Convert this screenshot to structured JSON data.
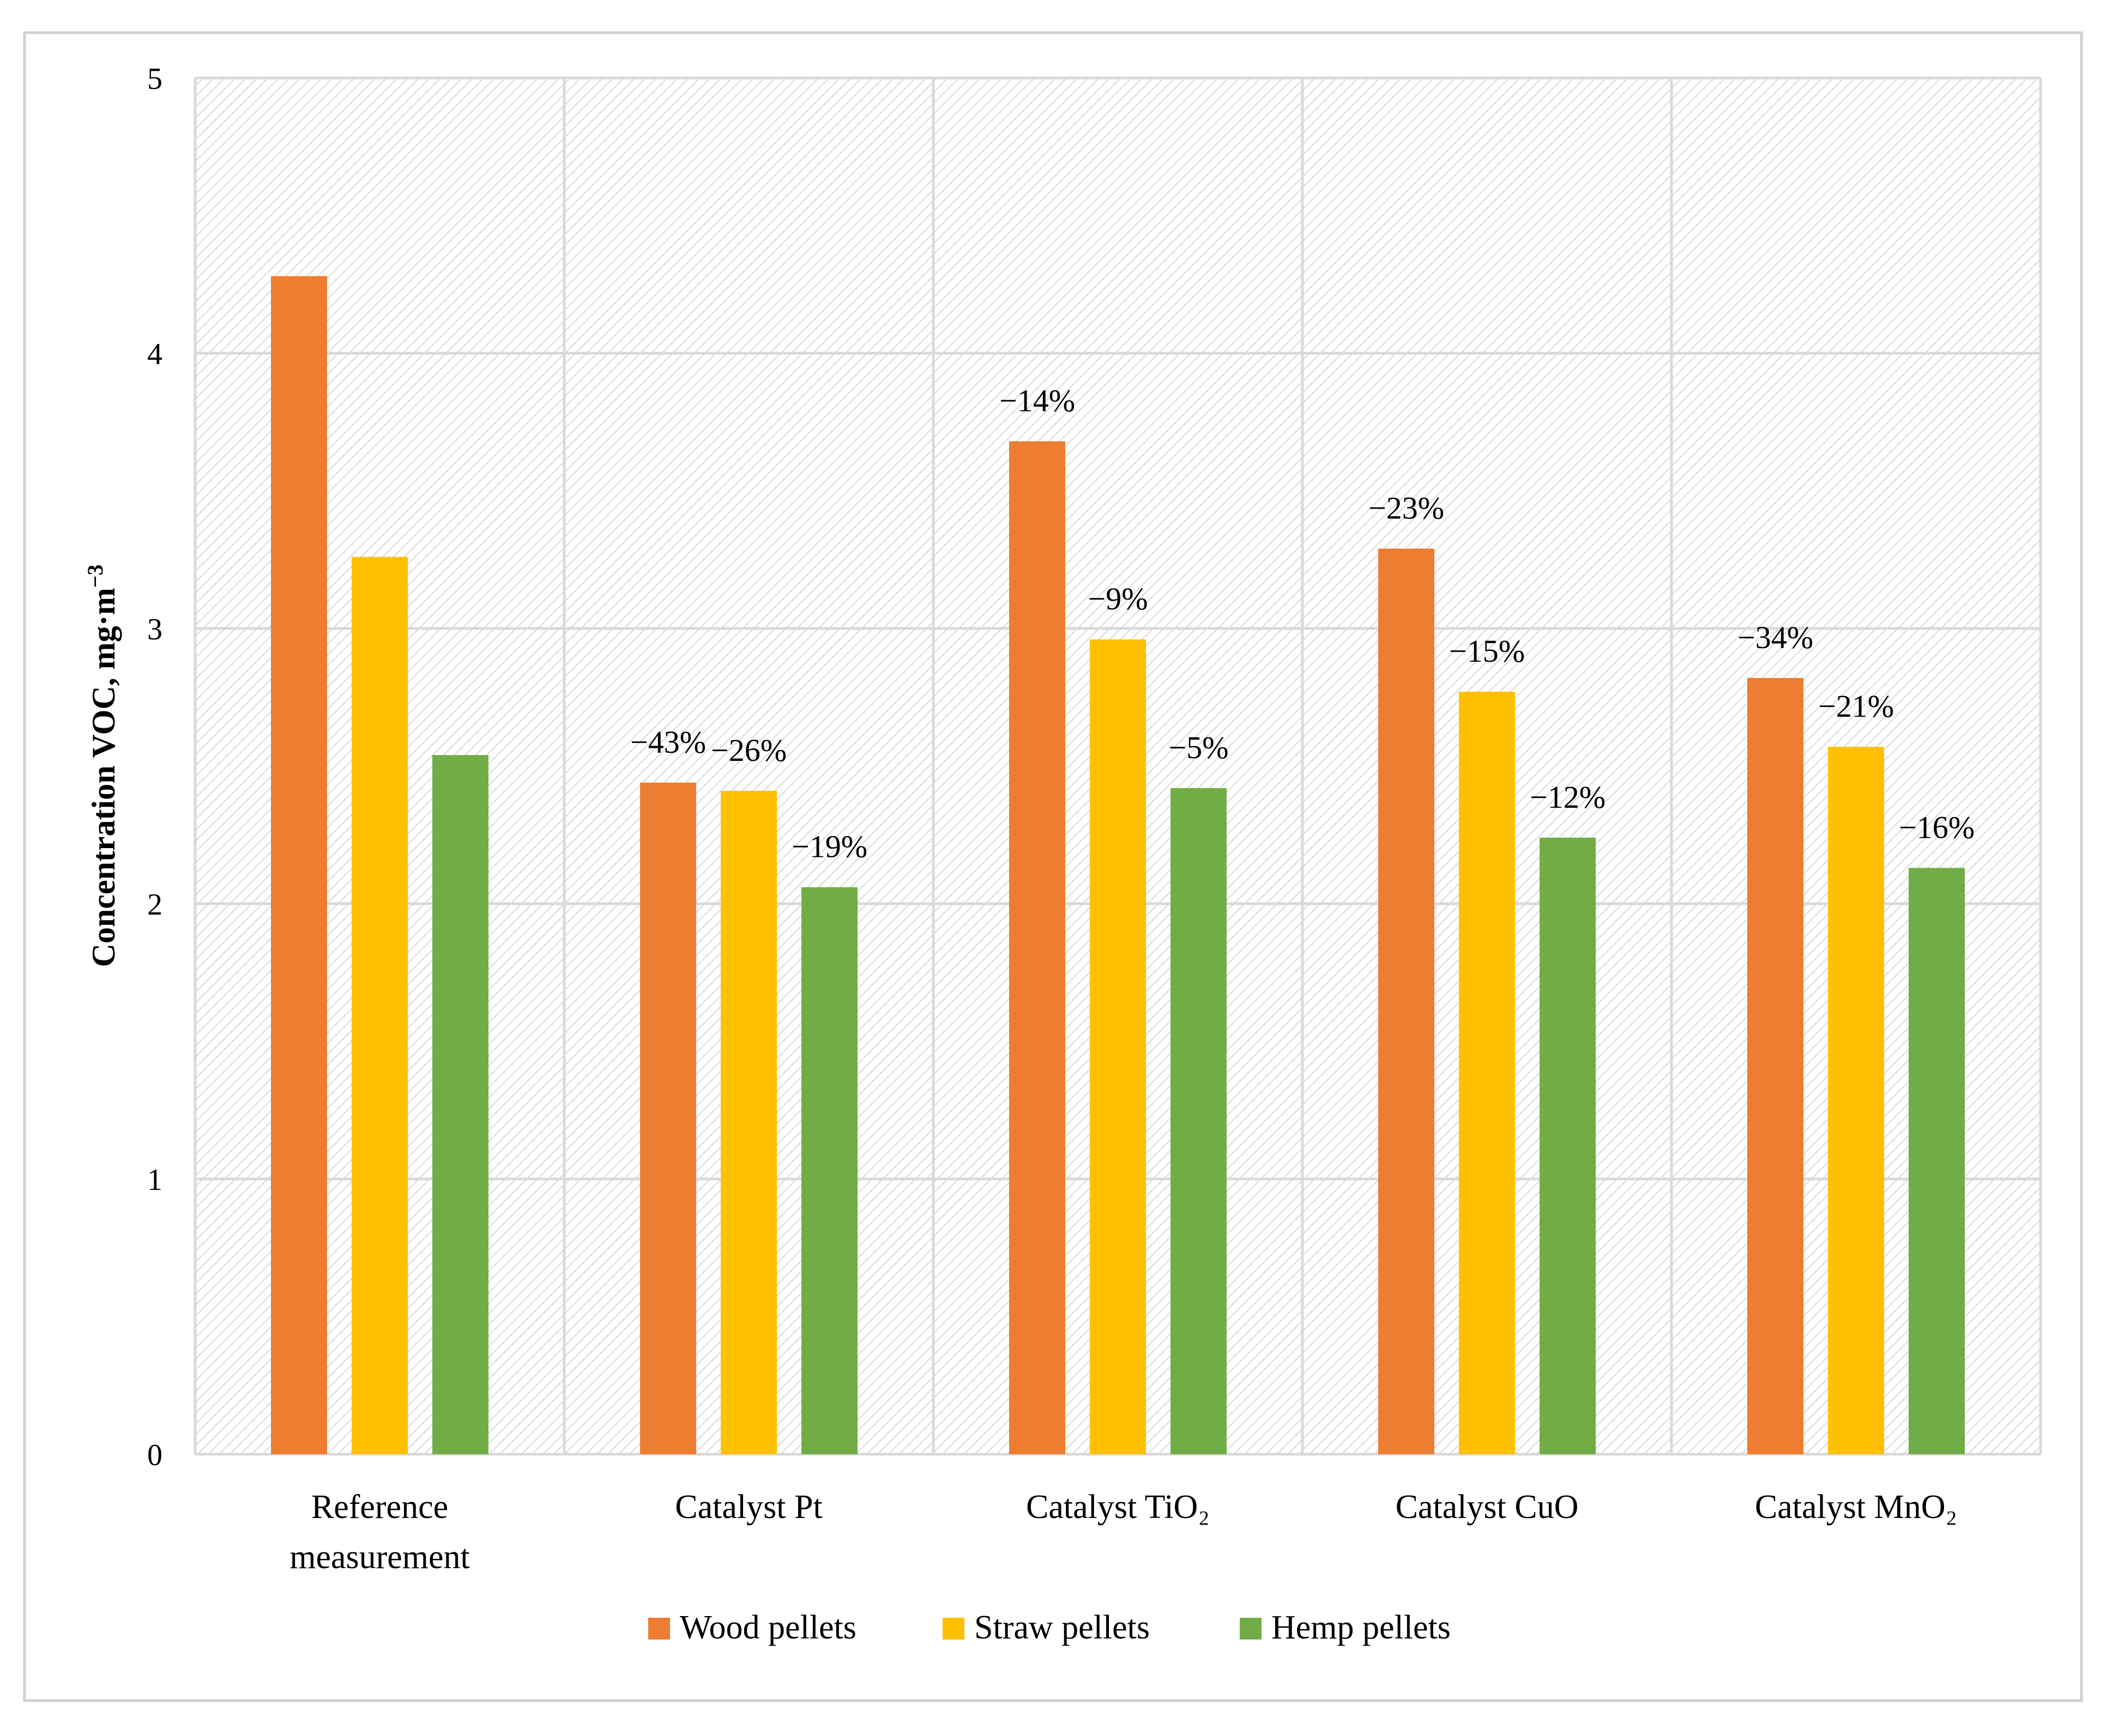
{
  "chart_data": {
    "type": "bar",
    "title": "",
    "xlabel": "",
    "ylabel": "Concentration VOC, mg·m",
    "ylabel_superscript": "−3",
    "ylim": [
      0,
      5
    ],
    "yticks": [
      0,
      1,
      2,
      3,
      4,
      5
    ],
    "grid": true,
    "legend_position": "bottom",
    "categories": [
      [
        "Reference",
        "measurement"
      ],
      [
        "Catalyst Pt"
      ],
      [
        "Catalyst  TiO₂"
      ],
      [
        "Catalyst CuO"
      ],
      [
        "Catalyst MnO₂"
      ]
    ],
    "series": [
      {
        "name": "Wood pellets",
        "color": "#ED7D31",
        "values": [
          4.28,
          2.44,
          3.68,
          3.29,
          2.82
        ],
        "labels": [
          "",
          "−43%",
          "−14%",
          "−23%",
          "−34%"
        ]
      },
      {
        "name": "Straw pellets",
        "color": "#FFC000",
        "values": [
          3.26,
          2.41,
          2.96,
          2.77,
          2.57
        ],
        "labels": [
          "",
          "−26%",
          "−9%",
          "−15%",
          "−21%"
        ]
      },
      {
        "name": "Hemp pellets",
        "color": "#70AD47",
        "values": [
          2.54,
          2.06,
          2.42,
          2.24,
          2.13
        ],
        "labels": [
          "",
          "−19%",
          "−5%",
          "−12%",
          "−16%"
        ]
      }
    ]
  }
}
